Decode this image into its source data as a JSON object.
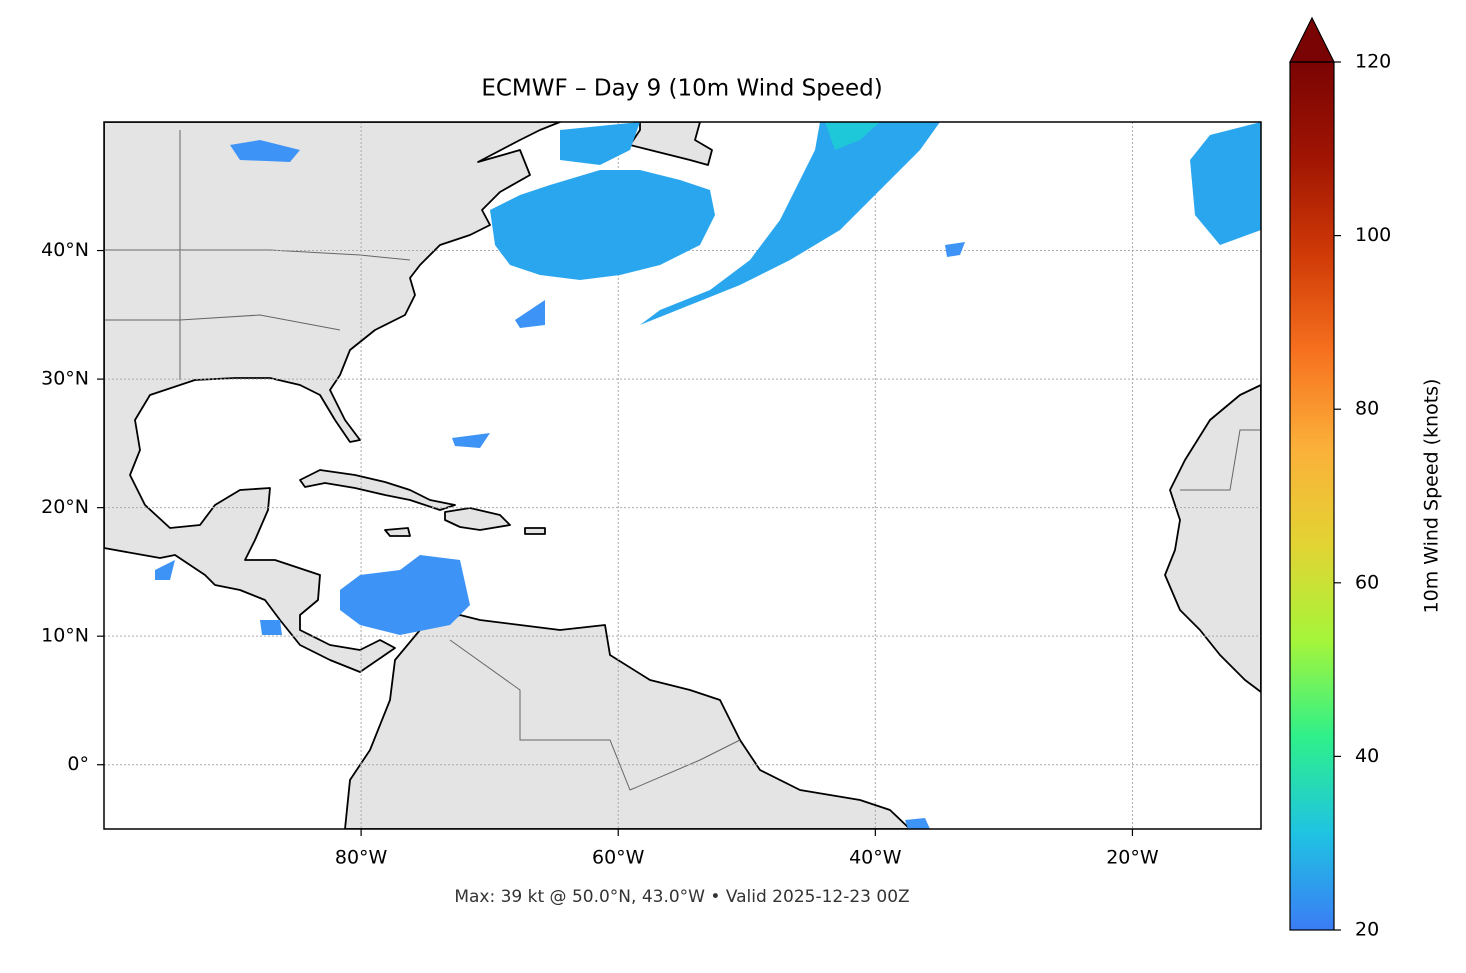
{
  "title": "ECMWF – Day 9 (10m Wind Speed)",
  "footer": "Max: 39 kt @ 50.0°N, 43.0°W • Valid 2025-12-23 00Z",
  "map": {
    "xlim": [
      -100,
      -10
    ],
    "ylim": [
      -5,
      50
    ],
    "xticks": [
      {
        "value": -80,
        "label": "80°W"
      },
      {
        "value": -60,
        "label": "60°W"
      },
      {
        "value": -40,
        "label": "40°W"
      },
      {
        "value": -20,
        "label": "20°W"
      }
    ],
    "yticks": [
      {
        "value": 0,
        "label": "0°"
      },
      {
        "value": 10,
        "label": "10°N"
      },
      {
        "value": 20,
        "label": "20°N"
      },
      {
        "value": 30,
        "label": "30°N"
      },
      {
        "value": 40,
        "label": "40°N"
      }
    ],
    "grid": true,
    "land_color": "#e4e4e4"
  },
  "colorbar": {
    "label": "10m Wind Speed (knots)",
    "lim": [
      20,
      120
    ],
    "ticks": [
      20,
      40,
      60,
      80,
      100,
      120
    ],
    "extend": "max",
    "colormap": [
      "#3b7cf5",
      "#1fc3e2",
      "#2ef08a",
      "#a5f53a",
      "#e3d333",
      "#fbb03a",
      "#f6711f",
      "#d03a07",
      "#a01503",
      "#7a0403"
    ]
  }
}
